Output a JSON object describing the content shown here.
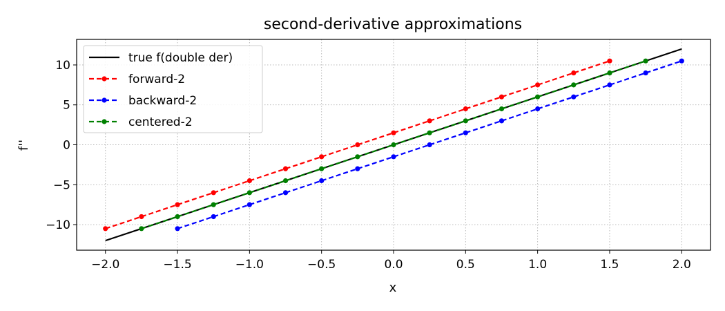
{
  "chart_data": {
    "type": "line",
    "title": "second-derivative approximations",
    "xlabel": "x",
    "ylabel": "f''",
    "xlim": [
      -2.2,
      2.2
    ],
    "ylim": [
      -13.2,
      13.2
    ],
    "xticks": [
      -2.0,
      -1.5,
      -1.0,
      -0.5,
      0.0,
      0.5,
      1.0,
      1.5,
      2.0
    ],
    "xtick_labels": [
      "−2.0",
      "−1.5",
      "−1.0",
      "−0.5",
      "0.0",
      "0.5",
      "1.0",
      "1.5",
      "2.0"
    ],
    "yticks": [
      -10,
      -5,
      0,
      5,
      10
    ],
    "ytick_labels": [
      "−10",
      "−5",
      "0",
      "5",
      "10"
    ],
    "grid": true,
    "legend_position": "top-left",
    "series": [
      {
        "name": "true f(double der)",
        "color": "#000000",
        "style": "solid",
        "markers": false,
        "x": [
          -2.0,
          2.0
        ],
        "y": [
          -12.0,
          12.0
        ]
      },
      {
        "name": "forward-2",
        "color": "#ff0000",
        "style": "dashed",
        "markers": true,
        "x": [
          -2.0,
          -1.75,
          -1.5,
          -1.25,
          -1.0,
          -0.75,
          -0.5,
          -0.25,
          0.0,
          0.25,
          0.5,
          0.75,
          1.0,
          1.25,
          1.5
        ],
        "y": [
          -10.5,
          -9.0,
          -7.5,
          -6.0,
          -4.5,
          -3.0,
          -1.5,
          0.0,
          1.5,
          3.0,
          4.5,
          6.0,
          7.5,
          9.0,
          10.5
        ]
      },
      {
        "name": "backward-2",
        "color": "#0000ff",
        "style": "dashed",
        "markers": true,
        "x": [
          -1.5,
          -1.25,
          -1.0,
          -0.75,
          -0.5,
          -0.25,
          0.0,
          0.25,
          0.5,
          0.75,
          1.0,
          1.25,
          1.5,
          1.75,
          2.0
        ],
        "y": [
          -10.5,
          -9.0,
          -7.5,
          -6.0,
          -4.5,
          -3.0,
          -1.5,
          0.0,
          1.5,
          3.0,
          4.5,
          6.0,
          7.5,
          9.0,
          10.5
        ]
      },
      {
        "name": "centered-2",
        "color": "#008000",
        "style": "dashed",
        "markers": true,
        "x": [
          -1.75,
          -1.5,
          -1.25,
          -1.0,
          -0.75,
          -0.5,
          -0.25,
          0.0,
          0.25,
          0.5,
          0.75,
          1.0,
          1.25,
          1.5,
          1.75
        ],
        "y": [
          -10.5,
          -9.0,
          -7.5,
          -6.0,
          -4.5,
          -3.0,
          -1.5,
          0.0,
          1.5,
          3.0,
          4.5,
          6.0,
          7.5,
          9.0,
          10.5
        ]
      }
    ]
  }
}
